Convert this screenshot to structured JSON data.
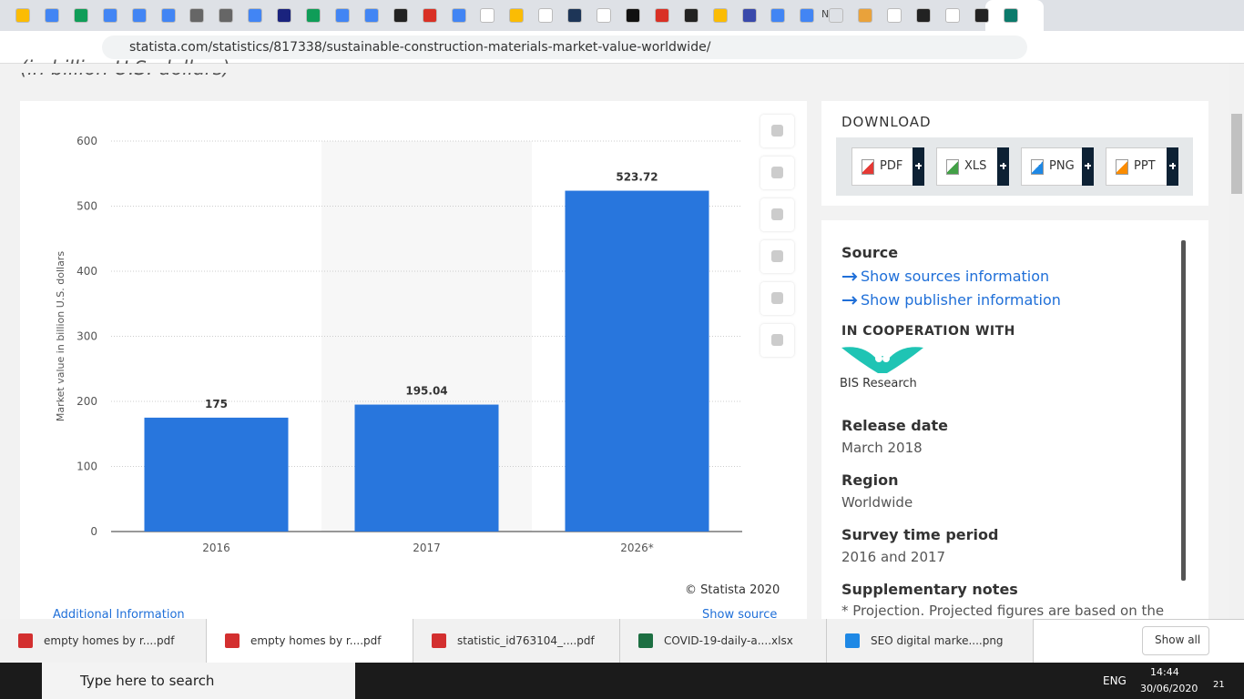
{
  "browser": {
    "tab_title": "Ne",
    "url": "statista.com/statistics/817338/sustainable-construction-materials-market-value-worldwide/"
  },
  "chart_data": {
    "type": "bar",
    "subtitle": "(in billion U.S. dollars)",
    "y_label": "Market value in billion U.S. dollars",
    "categories": [
      "2016",
      "2017",
      "2026*"
    ],
    "values": [
      175,
      195.04,
      523.72
    ],
    "color": "#2876dd",
    "ylim": [
      0,
      600
    ],
    "yticks": [
      0,
      100,
      200,
      300,
      400,
      500,
      600
    ],
    "grid": true,
    "credit": "© Statista 2020"
  },
  "chart_footer": {
    "additional": "Additional Information",
    "show_source": "Show source"
  },
  "download": {
    "title": "DOWNLOAD",
    "buttons": [
      "PDF",
      "XLS",
      "PNG",
      "PPT"
    ]
  },
  "details": {
    "source_title": "Source",
    "links": [
      "Show sources information",
      "Show publisher information"
    ],
    "cooperation": "IN COOPERATION WITH",
    "partner": "BIS Research",
    "fields": [
      {
        "label": "Release date",
        "value": "March 2018"
      },
      {
        "label": "Region",
        "value": "Worldwide"
      },
      {
        "label": "Survey time period",
        "value": "2016 and 2017"
      }
    ],
    "notes_title": "Supplementary notes",
    "notes": "* Projection. Projected figures are based on the"
  },
  "downloads_bar": {
    "items": [
      "empty homes by r....pdf",
      "empty homes by r....pdf",
      "statistic_id763104_....pdf",
      "COVID-19-daily-a....xlsx",
      "SEO digital marke....png"
    ],
    "show_all": "Show all"
  },
  "taskbar": {
    "search": "Type here to search",
    "lang": "ENG",
    "time": "14:44",
    "date": "30/06/2020",
    "notifications": "21"
  }
}
